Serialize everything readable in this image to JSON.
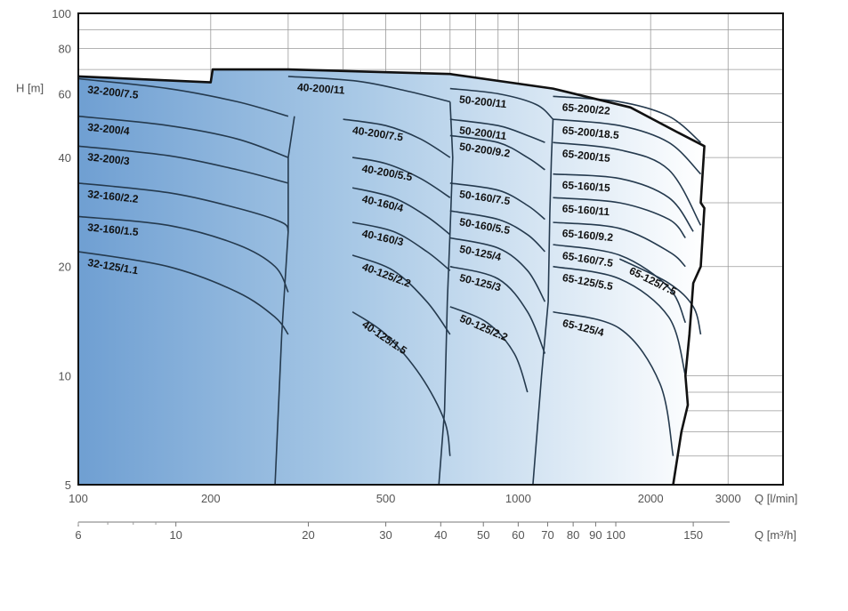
{
  "chart_data": {
    "type": "line",
    "x_scale": "log",
    "y_scale": "log",
    "xlim": [
      100,
      4000
    ],
    "ylim": [
      5,
      100
    ],
    "grid": true,
    "y_label": "H [m]",
    "x_label": "Q [l/min]",
    "x2_label": "Q [m³/h]",
    "colors": {
      "fill_dark": "#6f9fd2",
      "fill_light": "#ffffff",
      "curve": "#253a4e",
      "outline": "#111111",
      "grid": "#9a9a9a"
    },
    "y_ticks": [
      "100",
      "80",
      "60",
      "40",
      "20",
      "10",
      "5"
    ],
    "x_ticks": [
      "100",
      "200",
      "500",
      "1000",
      "2000",
      "3000"
    ],
    "x2_ticks": [
      "6",
      "10",
      "20",
      "30",
      "40",
      "50",
      "60",
      "70",
      "80",
      "90",
      "100",
      "150"
    ],
    "curves": [
      {
        "name": "32-200/7.5",
        "points": [
          [
            100,
            66
          ],
          [
            160,
            62
          ],
          [
            230,
            57
          ],
          [
            300,
            52
          ]
        ]
      },
      {
        "name": "32-200/4",
        "points": [
          [
            100,
            52
          ],
          [
            160,
            49
          ],
          [
            230,
            45
          ],
          [
            300,
            40
          ]
        ]
      },
      {
        "name": "32-200/3",
        "points": [
          [
            100,
            43
          ],
          [
            160,
            40.5
          ],
          [
            230,
            37
          ],
          [
            300,
            34
          ]
        ]
      },
      {
        "name": "32-160/2.2",
        "points": [
          [
            100,
            34
          ],
          [
            160,
            32
          ],
          [
            230,
            29
          ],
          [
            290,
            26.5
          ],
          [
            300,
            25
          ]
        ]
      },
      {
        "name": "32-160/1.5",
        "points": [
          [
            100,
            27.5
          ],
          [
            160,
            26
          ],
          [
            230,
            23
          ],
          [
            280,
            20
          ],
          [
            300,
            17
          ]
        ]
      },
      {
        "name": "32-125/1.1",
        "points": [
          [
            100,
            22
          ],
          [
            160,
            20
          ],
          [
            230,
            17
          ],
          [
            280,
            14.5
          ],
          [
            300,
            13
          ]
        ]
      },
      {
        "name": "40-200/11",
        "points": [
          [
            300,
            67
          ],
          [
            430,
            65
          ],
          [
            560,
            61
          ],
          [
            700,
            57
          ]
        ]
      },
      {
        "name": "40-200/7.5",
        "points": [
          [
            400,
            51
          ],
          [
            500,
            49
          ],
          [
            600,
            45
          ],
          [
            700,
            40
          ]
        ]
      },
      {
        "name": "40-200/5.5",
        "points": [
          [
            420,
            40
          ],
          [
            500,
            38.5
          ],
          [
            600,
            35
          ],
          [
            700,
            31
          ]
        ]
      },
      {
        "name": "40-160/4",
        "points": [
          [
            420,
            33
          ],
          [
            520,
            31
          ],
          [
            620,
            27.5
          ],
          [
            700,
            24.5
          ]
        ]
      },
      {
        "name": "40-160/3",
        "points": [
          [
            420,
            26.5
          ],
          [
            520,
            25
          ],
          [
            620,
            22
          ],
          [
            700,
            19.5
          ]
        ]
      },
      {
        "name": "40-125/2.2",
        "points": [
          [
            420,
            21.5
          ],
          [
            520,
            19.5
          ],
          [
            620,
            16
          ],
          [
            700,
            13
          ]
        ]
      },
      {
        "name": "40-125/1.5",
        "points": [
          [
            420,
            15
          ],
          [
            500,
            13
          ],
          [
            600,
            10
          ],
          [
            680,
            7.5
          ],
          [
            700,
            6
          ]
        ]
      },
      {
        "name": "50-200/11",
        "points": [
          [
            700,
            62
          ],
          [
            900,
            60
          ],
          [
            1100,
            56
          ],
          [
            1200,
            51
          ]
        ]
      },
      {
        "name": "50-200/11",
        "points": [
          [
            700,
            51
          ],
          [
            900,
            49
          ],
          [
            1050,
            46
          ],
          [
            1150,
            44
          ]
        ]
      },
      {
        "name": "50-200/9.2",
        "points": [
          [
            700,
            46
          ],
          [
            900,
            44
          ],
          [
            1050,
            40
          ],
          [
            1150,
            37
          ]
        ]
      },
      {
        "name": "50-160/7.5",
        "points": [
          [
            700,
            34
          ],
          [
            900,
            32.5
          ],
          [
            1050,
            29.5
          ],
          [
            1150,
            27
          ]
        ]
      },
      {
        "name": "50-160/5.5",
        "points": [
          [
            700,
            28.5
          ],
          [
            900,
            27
          ],
          [
            1050,
            24.5
          ],
          [
            1150,
            22
          ]
        ]
      },
      {
        "name": "50-125/4",
        "points": [
          [
            700,
            24
          ],
          [
            900,
            22.5
          ],
          [
            1050,
            19.5
          ],
          [
            1150,
            16
          ]
        ]
      },
      {
        "name": "50-125/3",
        "points": [
          [
            700,
            20
          ],
          [
            900,
            18.5
          ],
          [
            1050,
            15
          ],
          [
            1150,
            11.5
          ]
        ]
      },
      {
        "name": "50-125/2.2",
        "points": [
          [
            700,
            15.5
          ],
          [
            850,
            14
          ],
          [
            980,
            11.5
          ],
          [
            1050,
            9
          ]
        ]
      },
      {
        "name": "65-200/22",
        "points": [
          [
            1200,
            59
          ],
          [
            1700,
            57
          ],
          [
            2200,
            52
          ],
          [
            2600,
            44
          ]
        ]
      },
      {
        "name": "65-200/18.5",
        "points": [
          [
            1200,
            51
          ],
          [
            1700,
            49
          ],
          [
            2200,
            44
          ],
          [
            2600,
            36
          ]
        ]
      },
      {
        "name": "65-200/15",
        "points": [
          [
            1200,
            44
          ],
          [
            1700,
            42
          ],
          [
            2200,
            37
          ],
          [
            2600,
            26
          ]
        ]
      },
      {
        "name": "65-160/15",
        "points": [
          [
            1200,
            36
          ],
          [
            1700,
            35
          ],
          [
            2200,
            31
          ],
          [
            2500,
            25
          ]
        ]
      },
      {
        "name": "65-160/11",
        "points": [
          [
            1200,
            31
          ],
          [
            1700,
            30
          ],
          [
            2200,
            27
          ],
          [
            2400,
            24
          ]
        ]
      },
      {
        "name": "65-160/9.2",
        "points": [
          [
            1200,
            26.5
          ],
          [
            1700,
            25.5
          ],
          [
            2200,
            22
          ],
          [
            2400,
            20
          ]
        ]
      },
      {
        "name": "65-160/7.5",
        "points": [
          [
            1200,
            23
          ],
          [
            1700,
            21.5
          ],
          [
            2200,
            17.5
          ],
          [
            2400,
            14
          ]
        ]
      },
      {
        "name": "65-125/7.5",
        "points": [
          [
            1700,
            21
          ],
          [
            2200,
            18
          ],
          [
            2500,
            15.5
          ],
          [
            2600,
            13
          ]
        ]
      },
      {
        "name": "65-125/5.5",
        "points": [
          [
            1200,
            20
          ],
          [
            1700,
            18.5
          ],
          [
            2200,
            14.5
          ],
          [
            2400,
            10
          ]
        ]
      },
      {
        "name": "65-125/4",
        "points": [
          [
            1200,
            15
          ],
          [
            1700,
            13.5
          ],
          [
            2100,
            9.5
          ],
          [
            2250,
            6
          ]
        ]
      }
    ],
    "boundaries": [
      {
        "points": [
          [
            100,
            67
          ],
          [
            200,
            64.5
          ],
          [
            202,
            70
          ],
          [
            300,
            70
          ],
          [
            700,
            68
          ],
          [
            1200,
            62
          ],
          [
            1800,
            55
          ],
          [
            2300,
            47
          ],
          [
            2650,
            43
          ],
          [
            2600,
            30
          ],
          [
            2650,
            29
          ],
          [
            2600,
            20
          ],
          [
            2500,
            18
          ],
          [
            2450,
            13
          ],
          [
            2400,
            10
          ],
          [
            2430,
            8.3
          ],
          [
            2350,
            7
          ],
          [
            2250,
            5
          ]
        ]
      },
      {
        "points": [
          [
            310,
            52
          ],
          [
            300,
            40
          ],
          [
            300,
            25
          ],
          [
            290,
            13
          ],
          [
            280,
            5
          ]
        ]
      },
      {
        "points": [
          [
            700,
            57
          ],
          [
            710,
            40
          ],
          [
            700,
            25
          ],
          [
            690,
            16
          ],
          [
            680,
            8
          ],
          [
            660,
            5
          ]
        ]
      },
      {
        "points": [
          [
            1200,
            51
          ],
          [
            1190,
            40
          ],
          [
            1180,
            28
          ],
          [
            1170,
            16
          ],
          [
            1130,
            10
          ],
          [
            1080,
            5
          ]
        ]
      }
    ]
  }
}
